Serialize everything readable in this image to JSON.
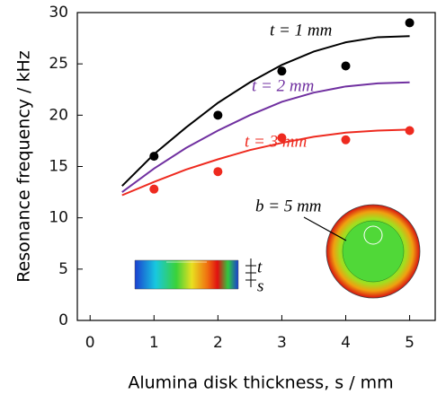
{
  "chart_data": {
    "type": "scatter-with-fits",
    "xlabel": "Alumina disk thickness, s / mm",
    "ylabel": "Resonance frequency / kHz",
    "xlim": [
      -0.2,
      5.4
    ],
    "ylim": [
      0,
      30
    ],
    "xticks": [
      0,
      1,
      2,
      3,
      4,
      5
    ],
    "yticks": [
      0,
      5,
      10,
      15,
      20,
      25,
      30
    ],
    "series": [
      {
        "mode": "markers",
        "color": "#000000",
        "x": [
          1,
          2,
          3,
          4,
          5
        ],
        "values": [
          16,
          20,
          24.3,
          24.8,
          29
        ]
      },
      {
        "mode": "markers",
        "color": "#ee2a1f",
        "x": [
          1,
          2,
          3,
          4,
          5
        ],
        "values": [
          12.8,
          14.5,
          17.8,
          17.6,
          18.5
        ]
      },
      {
        "mode": "lines",
        "color": "#000000",
        "x": [
          0.5,
          1,
          1.5,
          2,
          2.5,
          3,
          3.5,
          4,
          4.5,
          5
        ],
        "values": [
          13.1,
          16.2,
          18.8,
          21.2,
          23.2,
          24.9,
          26.2,
          27.1,
          27.6,
          27.7
        ]
      },
      {
        "mode": "lines",
        "color": "#7030a0",
        "x": [
          0.5,
          1,
          1.5,
          2,
          2.5,
          3,
          3.5,
          4,
          4.5,
          5
        ],
        "values": [
          12.5,
          14.8,
          16.8,
          18.5,
          20,
          21.3,
          22.2,
          22.8,
          23.1,
          23.2
        ]
      },
      {
        "mode": "lines",
        "color": "#ee2a1f",
        "x": [
          0.5,
          1,
          1.5,
          2,
          2.5,
          3,
          3.5,
          4,
          4.5,
          5
        ],
        "values": [
          12.2,
          13.5,
          14.7,
          15.7,
          16.6,
          17.3,
          17.9,
          18.3,
          18.5,
          18.6
        ]
      }
    ],
    "annotations": [
      {
        "text": "t = 1 mm",
        "color": "#000000"
      },
      {
        "text": "t = 2 mm",
        "color": "#7030a0"
      },
      {
        "text": "t = 3 mm",
        "color": "#ee2a1f"
      },
      {
        "text": "b = 5 mm",
        "color": "#000000"
      },
      {
        "text": "t",
        "color": "#000000"
      },
      {
        "text": "s",
        "color": "#000000"
      }
    ]
  }
}
